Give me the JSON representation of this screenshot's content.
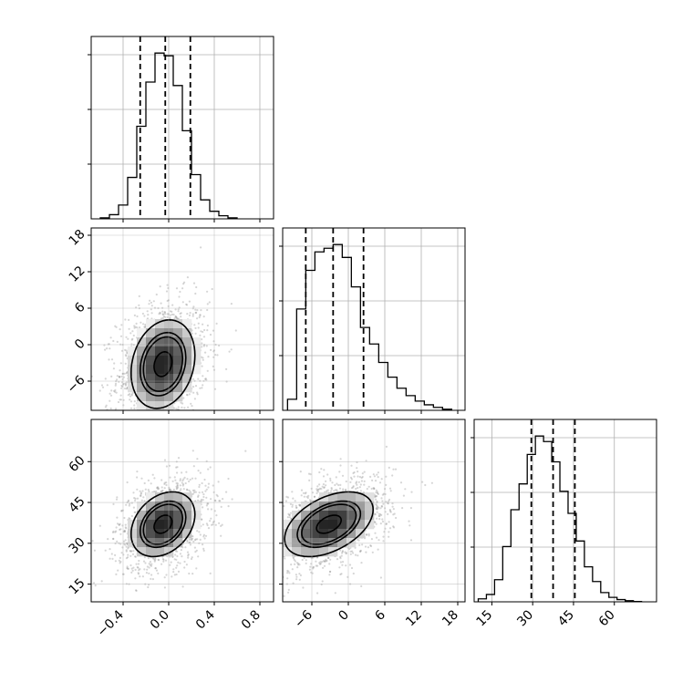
{
  "chart_data": {
    "type": "corner",
    "title": "",
    "grid": true,
    "parameters": [
      {
        "name": "",
        "range": [
          -0.68,
          0.92
        ],
        "ticks": [
          -0.4,
          0.0,
          0.4,
          0.8
        ],
        "tick_labels": [
          "−0.4",
          "0.0",
          "0.4",
          "0.8"
        ]
      },
      {
        "name": "",
        "range": [
          -10.8,
          19.2
        ],
        "ticks": [
          -6,
          0,
          6,
          12,
          18
        ],
        "tick_labels": [
          "−6",
          "0",
          "6",
          "12",
          "18"
        ]
      },
      {
        "name": "",
        "range": [
          8.5,
          75.5
        ],
        "ticks": [
          15,
          30,
          45,
          60
        ],
        "tick_labels": [
          "15",
          "30",
          "45",
          "60"
        ]
      }
    ],
    "histograms": [
      {
        "param": 0,
        "bin_edges": [
          -0.6,
          -0.52,
          -0.44,
          -0.36,
          -0.28,
          -0.2,
          -0.12,
          -0.04,
          0.04,
          0.12,
          0.2,
          0.28,
          0.36,
          0.44,
          0.52,
          0.6
        ],
        "counts": [
          3,
          12,
          40,
          120,
          268,
          396,
          480,
          472,
          386,
          255,
          128,
          55,
          22,
          9,
          3
        ],
        "quantiles": [
          -0.25,
          -0.03,
          0.19
        ]
      },
      {
        "param": 1,
        "bin_edges": [
          -10,
          -8.5,
          -7,
          -5.5,
          -4,
          -2.5,
          -1,
          0.5,
          2,
          3.5,
          5,
          6.5,
          8,
          9.5,
          11,
          12.5,
          14,
          15.5,
          17
        ],
        "counts": [
          30,
          275,
          380,
          430,
          440,
          450,
          415,
          335,
          225,
          180,
          130,
          90,
          60,
          40,
          25,
          15,
          8,
          3
        ],
        "quantiles": [
          -7.0,
          -2.5,
          2.5
        ]
      },
      {
        "param": 2,
        "bin_edges": [
          10,
          13,
          16,
          19,
          22,
          25,
          28,
          31,
          34,
          37,
          40,
          43,
          46,
          49,
          52,
          55,
          58,
          61,
          64,
          67,
          70
        ],
        "counts": [
          8,
          20,
          60,
          150,
          250,
          320,
          400,
          450,
          435,
          380,
          300,
          240,
          165,
          95,
          55,
          25,
          12,
          6,
          3,
          1
        ],
        "quantiles": [
          29.5,
          37.5,
          45.5
        ]
      }
    ],
    "pairs": [
      {
        "x": 1,
        "y": 0,
        "mean": [
          -0.05,
          -3.2
        ],
        "sd": [
          0.2,
          5.2
        ],
        "corr": 0.2
      },
      {
        "x": 2,
        "y": 0,
        "mean": [
          -0.05,
          37.0
        ],
        "sd": [
          0.2,
          8.5
        ],
        "corr": 0.3
      },
      {
        "x": 2,
        "y": 1,
        "mean": [
          -3.2,
          37.0
        ],
        "sd": [
          5.2,
          8.5
        ],
        "corr": 0.45
      }
    ],
    "contour_levels": [
      0.39,
      0.86,
      1.0,
      1.4
    ]
  }
}
